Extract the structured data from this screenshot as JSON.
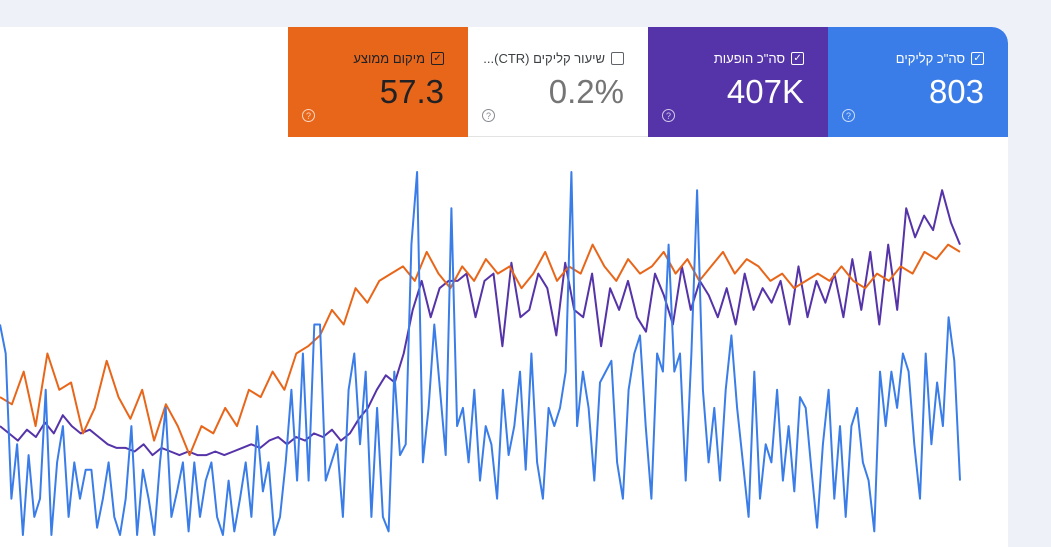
{
  "metrics": [
    {
      "key": "clicks",
      "label": "סה\"כ קליקים",
      "value": "803",
      "checked": true,
      "color": "#3a7de8"
    },
    {
      "key": "impressions",
      "label": "סה\"כ הופעות",
      "value": "407K",
      "checked": true,
      "color": "#5533a8"
    },
    {
      "key": "ctr",
      "label": "שיעור קליקים (CTR)...",
      "value": "0.2%",
      "checked": false,
      "color": "#ffffff"
    },
    {
      "key": "position",
      "label": "מיקום ממוצע",
      "value": "57.3",
      "checked": true,
      "color": "#e8661a"
    }
  ],
  "icons": {
    "checkbox_checked": "check-icon",
    "help": "help-icon"
  },
  "chart_data": {
    "type": "line",
    "title": "",
    "series": [
      {
        "key": "clicks",
        "color": "#3a7de8",
        "values": [
          0.58,
          0.5,
          0.1,
          0.25,
          0,
          0.22,
          0.05,
          0.1,
          0.4,
          0,
          0.2,
          0.3,
          0.05,
          0.2,
          0.1,
          0.18,
          0.18,
          0.02,
          0.1,
          0.2,
          0.05,
          0,
          0.1,
          0.3,
          0,
          0.18,
          0.1,
          0,
          0.2,
          0.35,
          0.05,
          0.12,
          0.2,
          0.01,
          0.2,
          0.05,
          0.15,
          0.2,
          0.05,
          0,
          0.15,
          0.01,
          0.1,
          0.2,
          0.05,
          0.3,
          0.12,
          0.2,
          0,
          0.05,
          0.2,
          0.4,
          0.15,
          0.5,
          0.15,
          0.58,
          0.58,
          0.15,
          0.2,
          0.25,
          0.05,
          0.4,
          0.5,
          0.25,
          0.45,
          0.05,
          0.35,
          0.05,
          0.01,
          0.45,
          0.22,
          0.25,
          0.8,
          1.0,
          0.2,
          0.35,
          0.58,
          0.4,
          0.22,
          0.9,
          0.3,
          0.35,
          0.2,
          0.4,
          0.15,
          0.3,
          0.25,
          0.1,
          0.4,
          0.22,
          0.3,
          0.45,
          0.18,
          0.5,
          0.2,
          0.1,
          0.35,
          0.3,
          0.35,
          0.45,
          1.0,
          0.3,
          0.45,
          0.35,
          0.15,
          0.42,
          0.45,
          0.48,
          0.2,
          0.1,
          0.4,
          0.5,
          0.55,
          0.3,
          0.1,
          0.5,
          0.45,
          0.8,
          0.45,
          0.5,
          0.15,
          0.5,
          0.95,
          0.4,
          0.2,
          0.35,
          0.15,
          0.4,
          0.55,
          0.35,
          0.2,
          0.05,
          0.45,
          0.1,
          0.25,
          0.2,
          0.4,
          0.15,
          0.3,
          0.12,
          0.38,
          0.35,
          0.18,
          0.02,
          0.25,
          0.4,
          0.1,
          0.3,
          0.05,
          0.3,
          0.35,
          0.2,
          0.15,
          0.01,
          0.45,
          0.3,
          0.45,
          0.35,
          0.5,
          0.45,
          0.25,
          0.1,
          0.5,
          0.25,
          0.42,
          0.3,
          0.6,
          0.48,
          0.15
        ]
      },
      {
        "key": "impressions",
        "color": "#5533a8",
        "values": [
          0.3,
          0.28,
          0.26,
          0.29,
          0.27,
          0.31,
          0.28,
          0.33,
          0.3,
          0.28,
          0.29,
          0.27,
          0.25,
          0.24,
          0.24,
          0.23,
          0.25,
          0.22,
          0.24,
          0.23,
          0.22,
          0.23,
          0.22,
          0.22,
          0.23,
          0.22,
          0.23,
          0.24,
          0.25,
          0.24,
          0.26,
          0.27,
          0.25,
          0.27,
          0.26,
          0.28,
          0.27,
          0.29,
          0.26,
          0.28,
          0.32,
          0.35,
          0.4,
          0.44,
          0.42,
          0.5,
          0.62,
          0.7,
          0.6,
          0.68,
          0.7,
          0.7,
          0.72,
          0.6,
          0.7,
          0.72,
          0.52,
          0.75,
          0.6,
          0.62,
          0.72,
          0.68,
          0.55,
          0.75,
          0.62,
          0.6,
          0.72,
          0.52,
          0.68,
          0.62,
          0.7,
          0.6,
          0.56,
          0.72,
          0.66,
          0.58,
          0.74,
          0.62,
          0.7,
          0.66,
          0.6,
          0.68,
          0.58,
          0.72,
          0.62,
          0.68,
          0.64,
          0.7,
          0.58,
          0.74,
          0.6,
          0.7,
          0.64,
          0.72,
          0.6,
          0.76,
          0.62,
          0.78,
          0.58,
          0.8,
          0.62,
          0.9,
          0.82,
          0.88,
          0.84,
          0.95,
          0.86,
          0.8
        ]
      },
      {
        "key": "position",
        "color": "#e8661a",
        "values": [
          0.38,
          0.36,
          0.45,
          0.3,
          0.5,
          0.4,
          0.42,
          0.28,
          0.35,
          0.48,
          0.38,
          0.32,
          0.4,
          0.26,
          0.36,
          0.3,
          0.22,
          0.3,
          0.28,
          0.35,
          0.3,
          0.4,
          0.38,
          0.45,
          0.4,
          0.5,
          0.52,
          0.55,
          0.62,
          0.58,
          0.68,
          0.64,
          0.7,
          0.72,
          0.74,
          0.7,
          0.78,
          0.72,
          0.68,
          0.74,
          0.7,
          0.76,
          0.72,
          0.74,
          0.68,
          0.72,
          0.78,
          0.7,
          0.74,
          0.72,
          0.8,
          0.74,
          0.7,
          0.76,
          0.72,
          0.74,
          0.78,
          0.72,
          0.76,
          0.7,
          0.74,
          0.78,
          0.72,
          0.76,
          0.74,
          0.7,
          0.72,
          0.68,
          0.7,
          0.72,
          0.7,
          0.74,
          0.7,
          0.68,
          0.72,
          0.7,
          0.74,
          0.72,
          0.78,
          0.76,
          0.8,
          0.78
        ]
      }
    ]
  }
}
